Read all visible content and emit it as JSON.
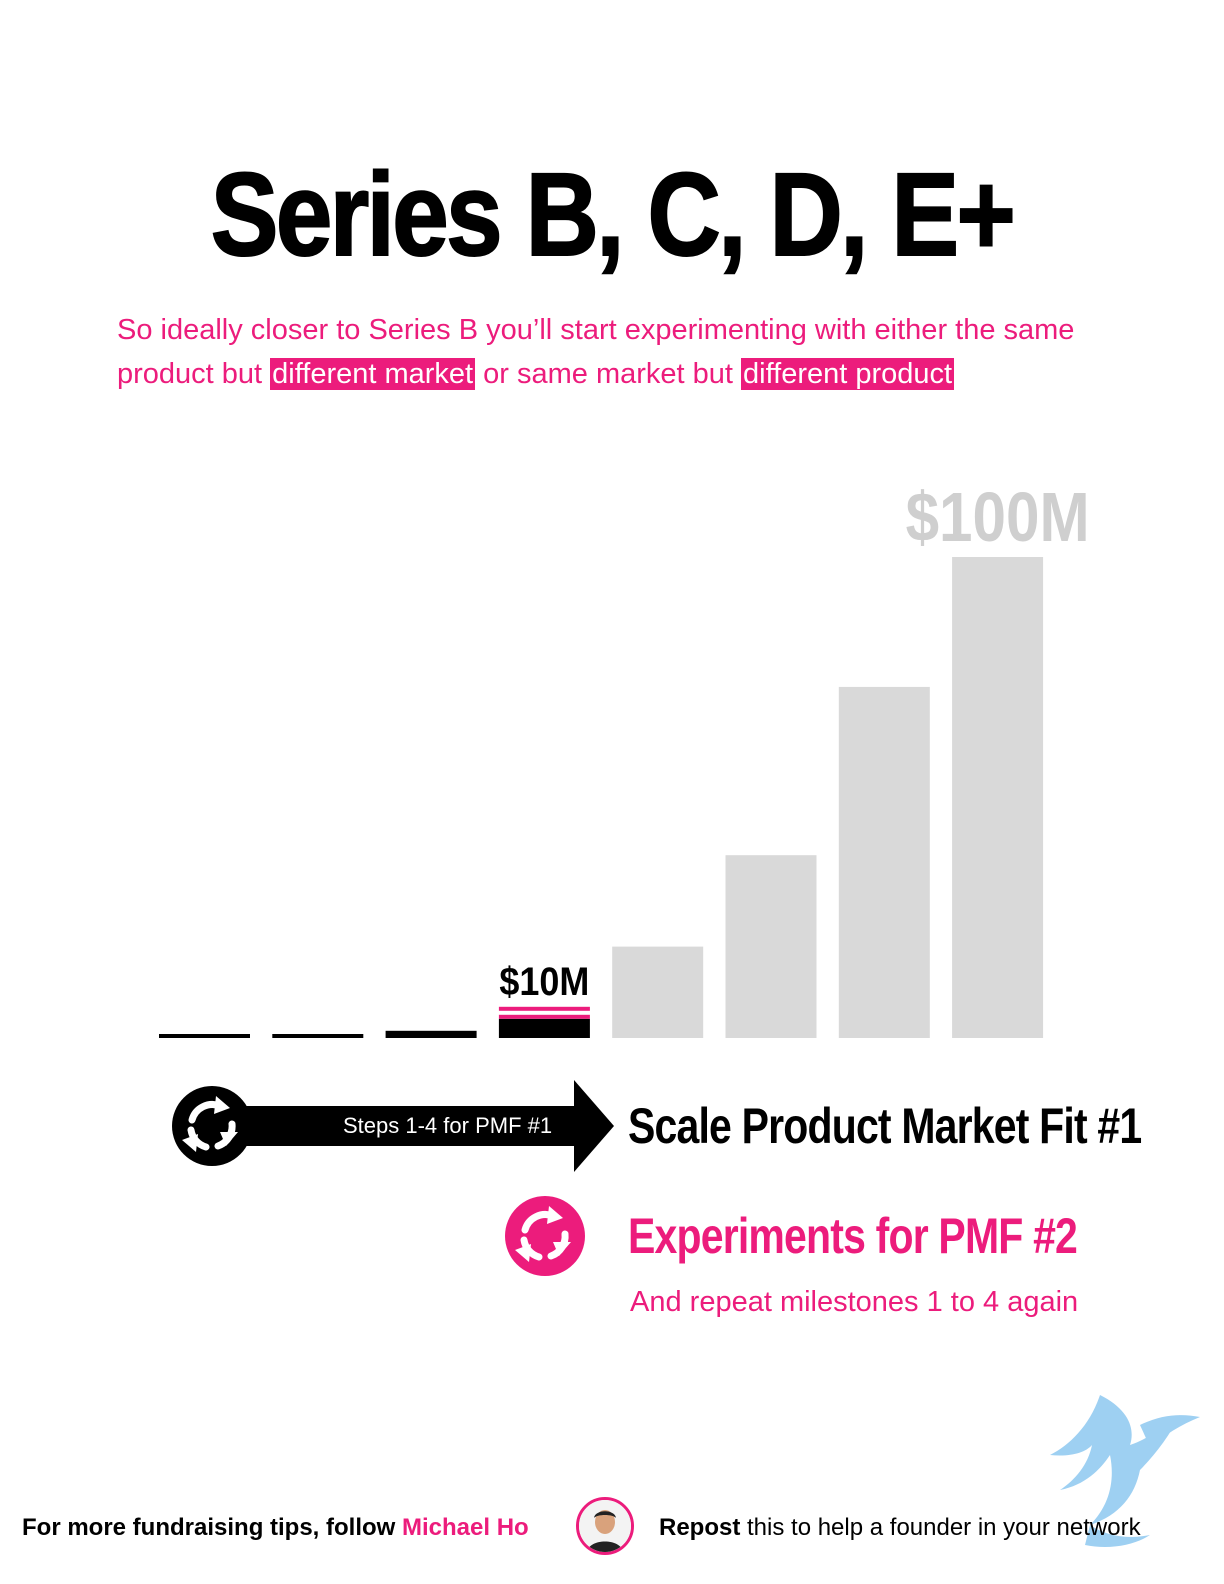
{
  "title": "Series B, C, D, E+",
  "subtitle": {
    "part1": "So ideally closer to Series B you’ll start experimenting with either the same product but ",
    "highlight1": "different market",
    "part2": " or same market but ",
    "highlight2": "different product"
  },
  "chart_data": {
    "type": "bar",
    "categories": [
      "",
      "",
      "",
      "",
      "",
      "",
      "",
      ""
    ],
    "values": [
      0.4,
      0.8,
      1.5,
      4,
      19,
      38,
      73,
      100
    ],
    "ylim": [
      0,
      100
    ],
    "annotations": [
      {
        "label": "$10M",
        "category_index": 3
      },
      {
        "label": "$100M",
        "category_index": 7
      }
    ],
    "grid": false,
    "colors": {
      "achieved": "#000000",
      "future": "#d9d9d9",
      "accent": "#ec1c7c"
    }
  },
  "arrow": {
    "label": "Steps 1-4 for PMF #1"
  },
  "scale_label": "Scale Product Market Fit #1",
  "experiments": {
    "title": "Experiments for PMF #2",
    "subtitle": "And repeat milestones 1 to 4 again"
  },
  "footer": {
    "prefix": "For more fundraising tips, follow ",
    "name": "Michael Ho",
    "repost_bold": "Repost",
    "repost_rest": " this to help a founder in your network"
  },
  "icons": {
    "cycle": "cycle-arrows-icon",
    "avatar": "avatar",
    "watermark": "griffin-logo-watermark"
  },
  "colors": {
    "accent": "#ec1c7c",
    "text": "#000000",
    "future_bar": "#d9d9d9"
  }
}
